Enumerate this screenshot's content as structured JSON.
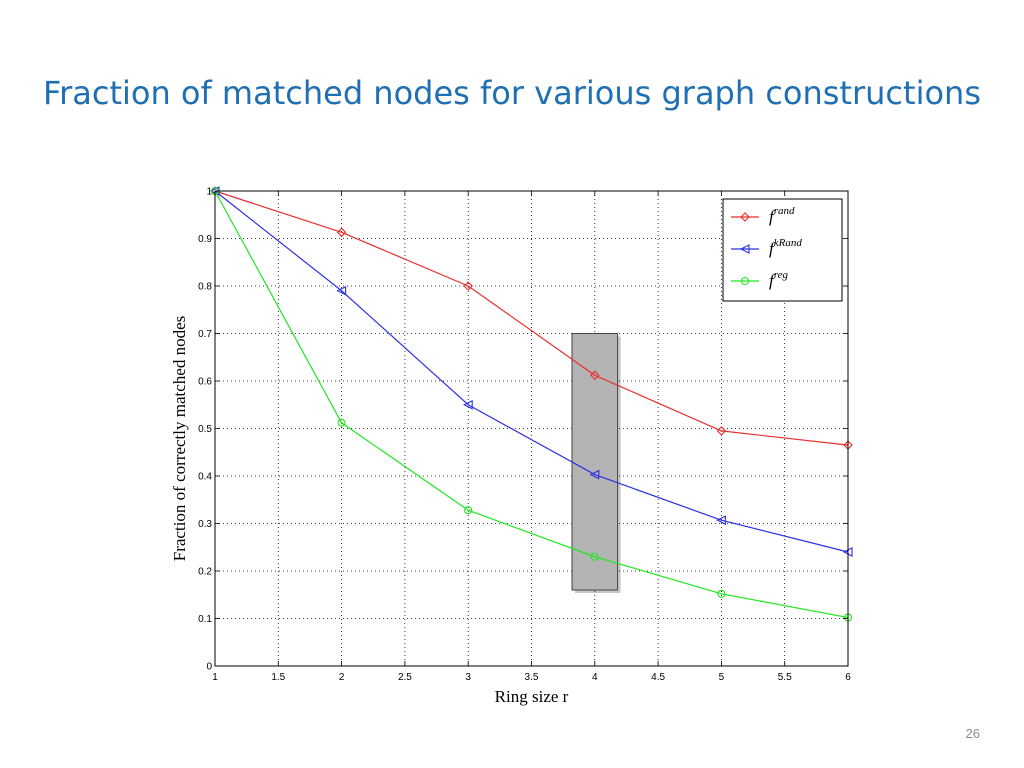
{
  "slide": {
    "title": "Fraction of matched nodes for various graph constructions",
    "page_number": "26"
  },
  "chart_data": {
    "type": "line",
    "title": "",
    "xlabel": "Ring size r",
    "ylabel": "Fraction of correctly matched nodes",
    "xlim": [
      1,
      6
    ],
    "ylim": [
      0,
      1
    ],
    "x_ticks": [
      "1",
      "1.5",
      "2",
      "2.5",
      "3",
      "3.5",
      "4",
      "4.5",
      "5",
      "5.5",
      "6"
    ],
    "y_ticks": [
      "0",
      "0.1",
      "0.2",
      "0.3",
      "0.4",
      "0.5",
      "0.6",
      "0.7",
      "0.8",
      "0.9",
      "1"
    ],
    "grid": true,
    "legend_position": "top-right",
    "x": [
      1,
      2,
      3,
      4,
      5,
      6
    ],
    "series": [
      {
        "name": "f",
        "superscript": "rand",
        "color": "#e8302e",
        "marker": "diamond",
        "values": [
          1.0,
          0.913,
          0.8,
          0.612,
          0.495,
          0.465
        ]
      },
      {
        "name": "f",
        "superscript": "kRand",
        "color": "#2c33e0",
        "marker": "triangle-left",
        "values": [
          1.0,
          0.79,
          0.55,
          0.403,
          0.307,
          0.24
        ]
      },
      {
        "name": "f",
        "superscript": "reg",
        "color": "#22e622",
        "marker": "circle",
        "values": [
          1.0,
          0.512,
          0.328,
          0.23,
          0.152,
          0.102
        ]
      }
    ],
    "highlight": {
      "x_range": [
        3.82,
        4.18
      ],
      "y_range": [
        0.16,
        0.7
      ],
      "color": "#b4b4b4"
    }
  }
}
